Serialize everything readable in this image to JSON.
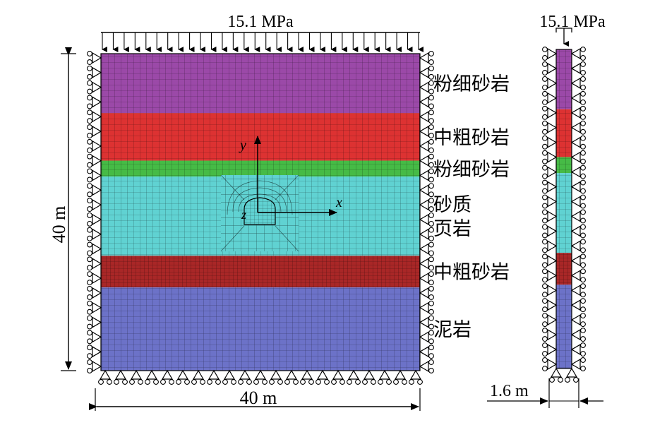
{
  "load_label_main": "15.1 MPa",
  "load_label_slice": "15.1 MPa",
  "height_label": "40 m",
  "width_label": "40 m",
  "thickness_label": "1.6 m",
  "axes": {
    "x": "x",
    "y": "y",
    "z": "z"
  },
  "layers": [
    {
      "name": "粉细砂岩",
      "color": "#9b49a8",
      "thickness_m": 7.5
    },
    {
      "name": "中粗砂岩",
      "color": "#dd3232",
      "thickness_m": 6.0
    },
    {
      "name": "粉细砂岩",
      "color": "#46bb46",
      "thickness_m": 2.0
    },
    {
      "name": "砂质页岩",
      "color": "#60d2d2",
      "thickness_m": 10.0
    },
    {
      "name": "中粗砂岩",
      "color": "#a92727",
      "thickness_m": 4.0
    },
    {
      "name": "泥岩",
      "color": "#6c72c8",
      "thickness_m": 10.5
    }
  ],
  "layer_label_lines": [
    [
      "粉细砂岩"
    ],
    [
      "中粗砂岩"
    ],
    [
      "粉细砂岩"
    ],
    [
      "砂质",
      "页岩"
    ],
    [
      "中粗砂岩"
    ],
    [
      "泥岩"
    ]
  ]
}
